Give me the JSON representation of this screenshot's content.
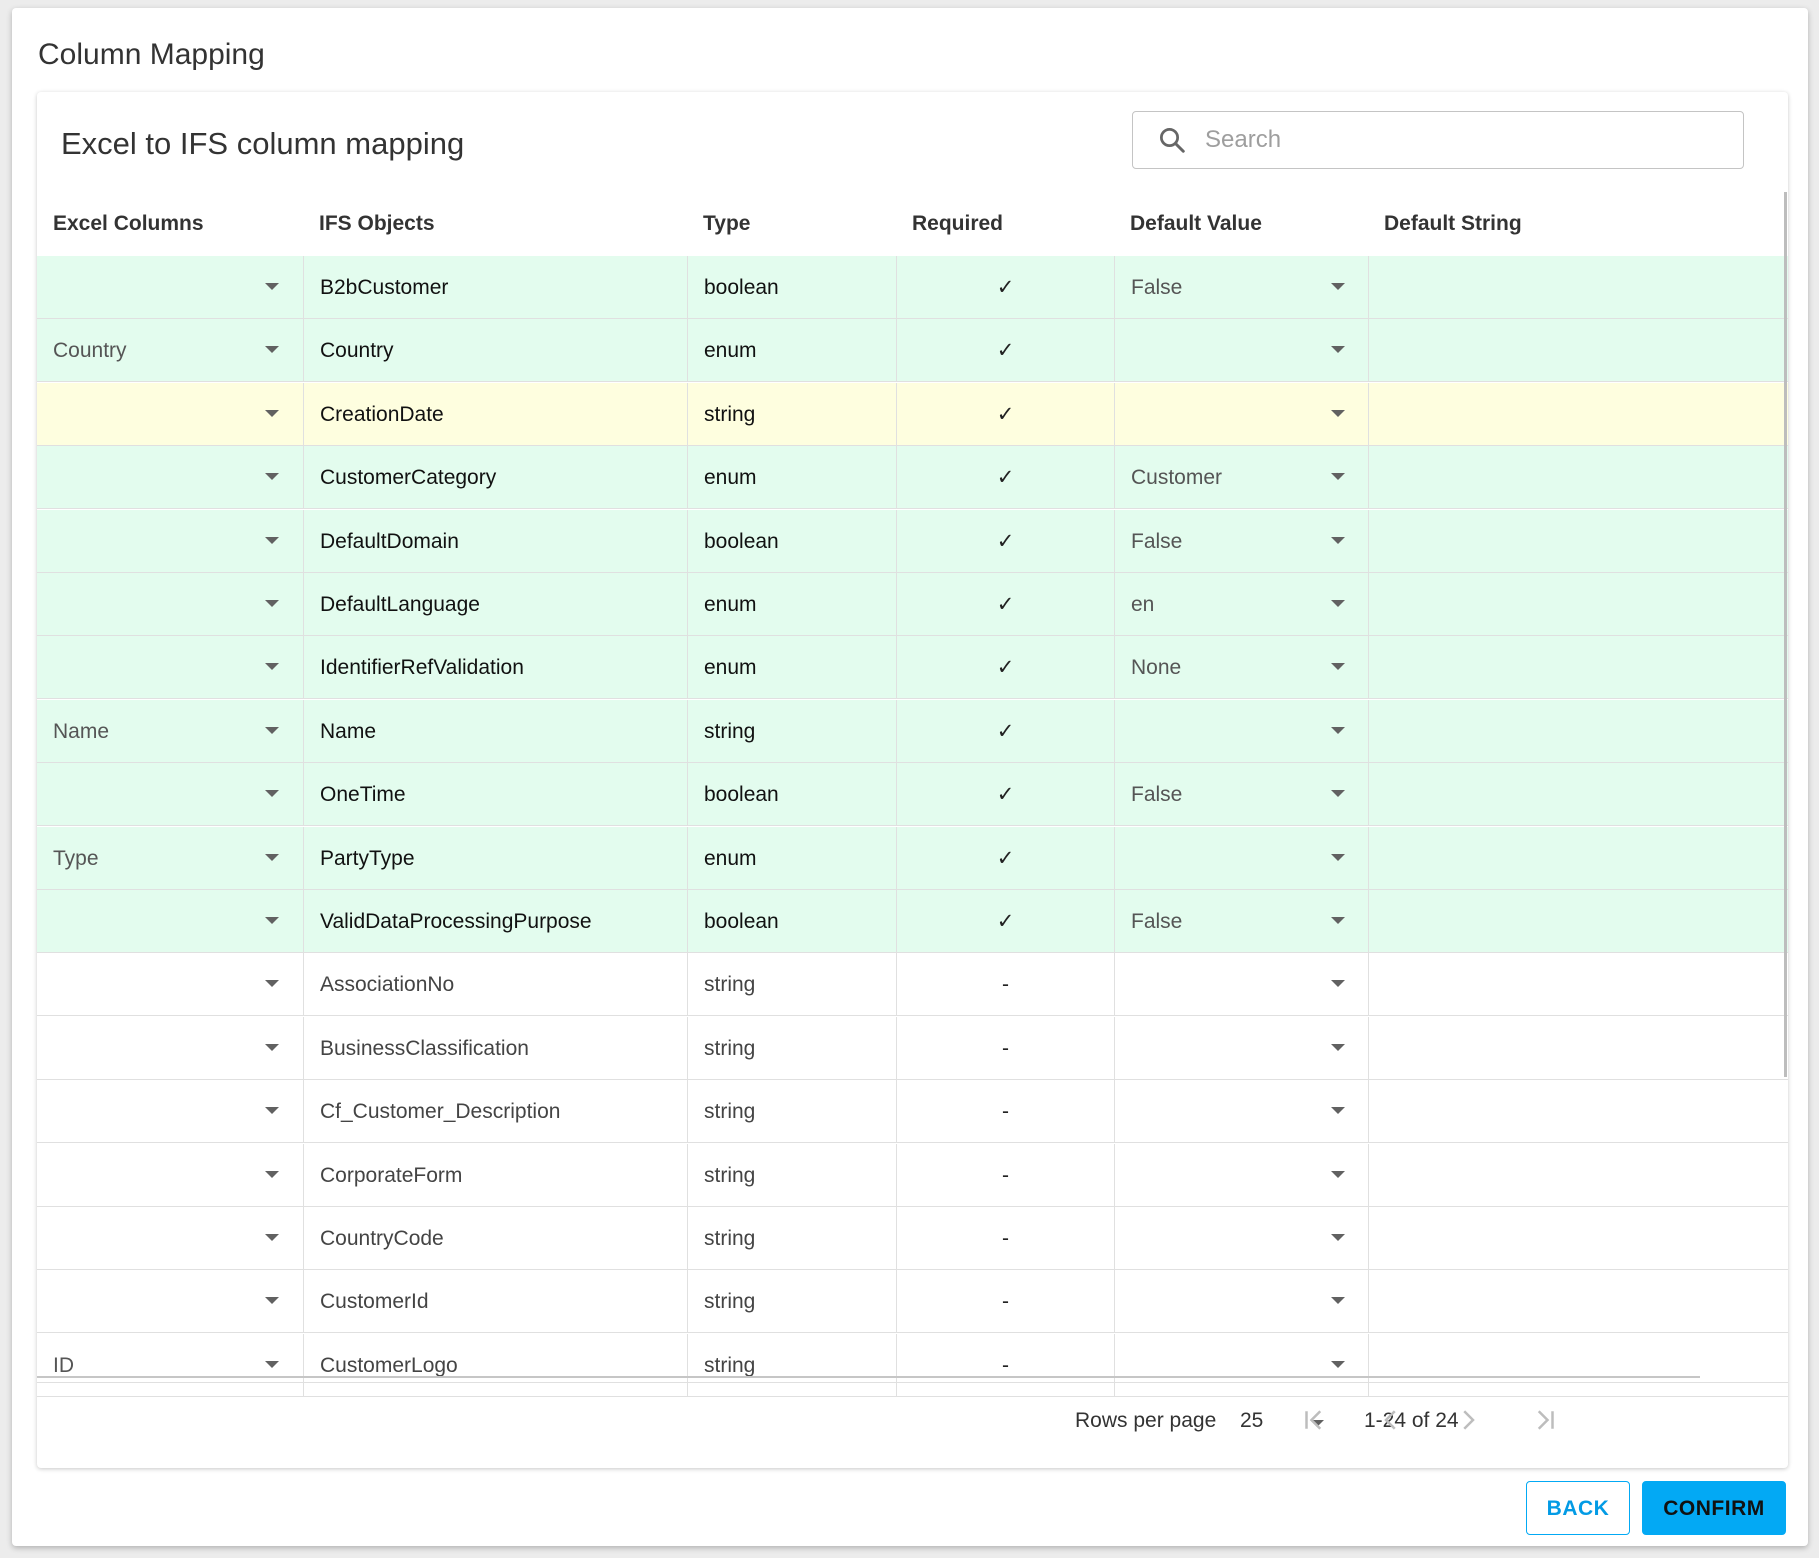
{
  "dialog": {
    "title": "Column Mapping"
  },
  "card": {
    "title": "Excel to IFS column mapping"
  },
  "search": {
    "placeholder": "Search"
  },
  "columns": [
    "Excel Columns",
    "IFS Objects",
    "Type",
    "Required",
    "Default Value",
    "Default String"
  ],
  "rows": [
    {
      "excel": "",
      "object": "B2bCustomer",
      "type": "boolean",
      "required": "✓",
      "default_value": "False",
      "status": "green"
    },
    {
      "excel": "Country",
      "object": "Country",
      "type": "enum",
      "required": "✓",
      "default_value": "",
      "status": "green"
    },
    {
      "excel": "",
      "object": "CreationDate",
      "type": "string",
      "required": "✓",
      "default_value": "",
      "status": "yellow"
    },
    {
      "excel": "",
      "object": "CustomerCategory",
      "type": "enum",
      "required": "✓",
      "default_value": "Customer",
      "status": "green"
    },
    {
      "excel": "",
      "object": "DefaultDomain",
      "type": "boolean",
      "required": "✓",
      "default_value": "False",
      "status": "green"
    },
    {
      "excel": "",
      "object": "DefaultLanguage",
      "type": "enum",
      "required": "✓",
      "default_value": "en",
      "status": "green"
    },
    {
      "excel": "",
      "object": "IdentifierRefValidation",
      "type": "enum",
      "required": "✓",
      "default_value": "None",
      "status": "green"
    },
    {
      "excel": "Name",
      "object": "Name",
      "type": "string",
      "required": "✓",
      "default_value": "",
      "status": "green"
    },
    {
      "excel": "",
      "object": "OneTime",
      "type": "boolean",
      "required": "✓",
      "default_value": "False",
      "status": "green"
    },
    {
      "excel": "Type",
      "object": "PartyType",
      "type": "enum",
      "required": "✓",
      "default_value": "",
      "status": "green"
    },
    {
      "excel": "",
      "object": "ValidDataProcessingPurpose",
      "type": "boolean",
      "required": "✓",
      "default_value": "False",
      "status": "green"
    },
    {
      "excel": "",
      "object": "AssociationNo",
      "type": "string",
      "required": "-",
      "default_value": "",
      "status": "none"
    },
    {
      "excel": "",
      "object": "BusinessClassification",
      "type": "string",
      "required": "-",
      "default_value": "",
      "status": "none"
    },
    {
      "excel": "",
      "object": "Cf_Customer_Description",
      "type": "string",
      "required": "-",
      "default_value": "",
      "status": "none"
    },
    {
      "excel": "",
      "object": "CorporateForm",
      "type": "string",
      "required": "-",
      "default_value": "",
      "status": "none"
    },
    {
      "excel": "",
      "object": "CountryCode",
      "type": "string",
      "required": "-",
      "default_value": "",
      "status": "none"
    },
    {
      "excel": "",
      "object": "CustomerId",
      "type": "string",
      "required": "-",
      "default_value": "",
      "status": "none"
    },
    {
      "excel": "ID",
      "object": "CustomerLogo",
      "type": "string",
      "required": "-",
      "default_value": "",
      "status": "none"
    }
  ],
  "pagination": {
    "rows_per_page_label": "Rows per page",
    "rows_per_page": "25",
    "range": "1-24 of 24"
  },
  "actions": {
    "back": "BACK",
    "confirm": "CONFIRM"
  },
  "colors": {
    "required_row": "#e3fcee",
    "warning_row": "#fefedf",
    "accent": "#03a9f4"
  }
}
